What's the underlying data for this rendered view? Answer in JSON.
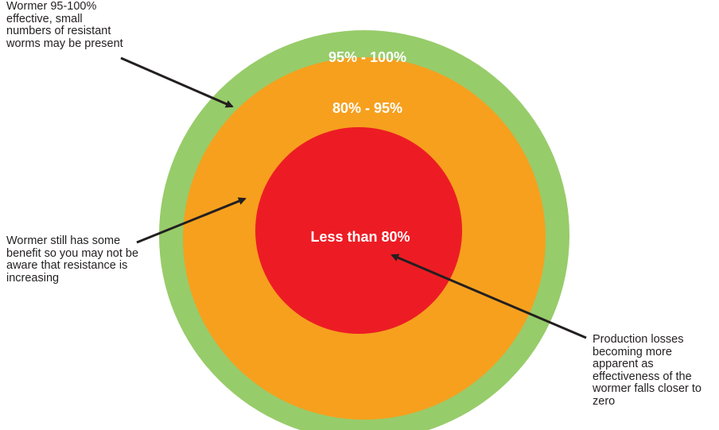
{
  "rings": [
    {
      "id": "outer",
      "label": "95% - 100%",
      "color": "#97cc6a"
    },
    {
      "id": "middle",
      "label": "80% - 95%",
      "color": "#f6a01e"
    },
    {
      "id": "inner",
      "label": "Less than 80%",
      "color": "#ed1c24"
    }
  ],
  "annotations": {
    "outer": "Wormer 95-100% effective, small numbers of resistant worms may be present",
    "middle": "Wormer still has some benefit so you may not be aware that resistance is increasing",
    "inner": "Production losses becoming more apparent as effectiveness of the wormer falls closer to zero"
  },
  "arrow_color": "#231f20"
}
